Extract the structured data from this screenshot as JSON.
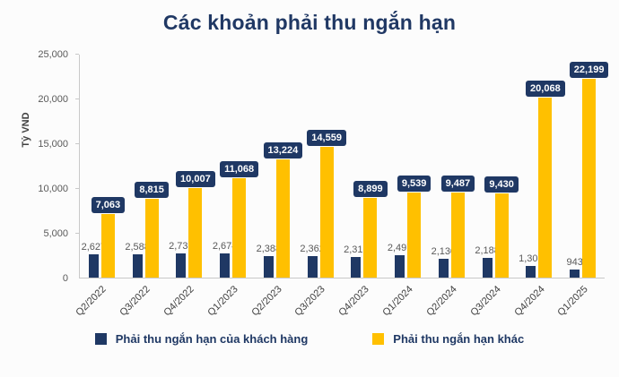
{
  "chart_data": {
    "type": "bar",
    "title": "Các khoản phải thu ngắn hạn",
    "ylabel": "Tỷ VND",
    "ylim": [
      0,
      25000
    ],
    "yticks": [
      0,
      5000,
      10000,
      15000,
      20000,
      25000
    ],
    "ytick_labels": [
      "0",
      "5,000",
      "10,000",
      "15,000",
      "20,000",
      "25,000"
    ],
    "grid": false,
    "legend_position": "bottom",
    "categories": [
      "Q2/2022",
      "Q3/2022",
      "Q4/2022",
      "Q1/2023",
      "Q2/2023",
      "Q3/2023",
      "Q4/2023",
      "Q1/2024",
      "Q2/2024",
      "Q3/2024",
      "Q4/2024",
      "Q1/2025"
    ],
    "series": [
      {
        "name": "Phải thu ngắn hạn của khách hàng",
        "color": "#1F3864",
        "label_style": "plain",
        "values": [
          2627,
          2588,
          2736,
          2674,
          2388,
          2362,
          2310,
          2497,
          2130,
          2188,
          1303,
          943
        ],
        "labels": [
          "2,627",
          "2,588",
          "2,736",
          "2,674",
          "2,388",
          "2,362",
          "2,310",
          "2,497",
          "2,130",
          "2,188",
          "1,303",
          "943"
        ]
      },
      {
        "name": "Phải thu ngắn hạn khác",
        "color": "#FFC000",
        "label_style": "badge",
        "values": [
          7063,
          8815,
          10007,
          11068,
          13224,
          14559,
          8899,
          9539,
          9487,
          9430,
          20068,
          22199
        ],
        "labels": [
          "7,063",
          "8,815",
          "10,007",
          "11,068",
          "13,224",
          "14,559",
          "8,899",
          "9,539",
          "9,487",
          "9,430",
          "20,068",
          "22,199"
        ]
      }
    ],
    "badge_color": "#1F3864",
    "badge_text_color": "#FFFFFF"
  }
}
